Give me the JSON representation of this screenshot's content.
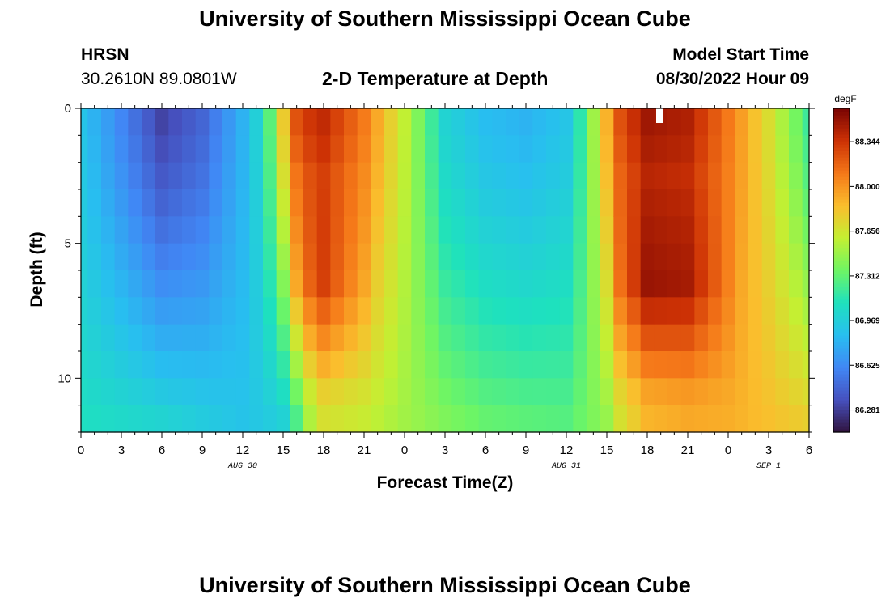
{
  "page": {
    "title_top": "University of Southern Mississippi Ocean Cube",
    "title_bottom": "University of Southern Mississippi Ocean Cube",
    "station_name": "HRSN",
    "station_coords": "30.2610N  89.0801W",
    "plot_title": "2-D Temperature at Depth",
    "model_start_label": "Model Start Time",
    "model_start_value": "08/30/2022 Hour 09"
  },
  "chart_data": {
    "type": "heatmap",
    "title": "2-D Temperature at Depth",
    "xlabel": "Forecast Time(Z)",
    "ylabel": "Depth (ft)",
    "x_range_hours": [
      0,
      54
    ],
    "y_range_ft": [
      0,
      12
    ],
    "x_ticks": [
      {
        "hour": 0,
        "label": "0"
      },
      {
        "hour": 3,
        "label": "3"
      },
      {
        "hour": 6,
        "label": "6"
      },
      {
        "hour": 9,
        "label": "9"
      },
      {
        "hour": 12,
        "label": "12"
      },
      {
        "hour": 15,
        "label": "15"
      },
      {
        "hour": 18,
        "label": "18"
      },
      {
        "hour": 21,
        "label": "21"
      },
      {
        "hour": 24,
        "label": "0"
      },
      {
        "hour": 27,
        "label": "3"
      },
      {
        "hour": 30,
        "label": "6"
      },
      {
        "hour": 33,
        "label": "9"
      },
      {
        "hour": 36,
        "label": "12"
      },
      {
        "hour": 39,
        "label": "15"
      },
      {
        "hour": 42,
        "label": "18"
      },
      {
        "hour": 45,
        "label": "21"
      },
      {
        "hour": 48,
        "label": "0"
      },
      {
        "hour": 51,
        "label": "3"
      },
      {
        "hour": 54,
        "label": "6"
      }
    ],
    "date_labels": [
      {
        "hour": 12,
        "label": "AUG 30"
      },
      {
        "hour": 36,
        "label": "AUG 31"
      },
      {
        "hour": 51,
        "label": "SEP 1"
      }
    ],
    "y_ticks": [
      {
        "depth": 0,
        "label": "0"
      },
      {
        "depth": 5,
        "label": "5"
      },
      {
        "depth": 10,
        "label": "10"
      }
    ],
    "colorbar": {
      "unit": "degF",
      "min": 86.11,
      "max": 88.6,
      "tick_values": [
        86.281,
        86.625,
        86.969,
        87.312,
        87.656,
        88.0,
        88.344
      ],
      "tick_labels": [
        "86.281",
        "86.625",
        "86.969",
        "87.312",
        "87.656",
        "88.000",
        "88.344"
      ]
    },
    "grid": {
      "hours_start": 0,
      "hours_step": 1,
      "hours_count": 55,
      "depth_rows": [
        0.5,
        1.5,
        2.5,
        3.5,
        4.5,
        5.5,
        6.5,
        7.5,
        8.5,
        9.5,
        10.5,
        11.5
      ],
      "surface_keypoints": {
        "hours": [
          0,
          3,
          6,
          9,
          12,
          13,
          14,
          15,
          16,
          17,
          18,
          21,
          24,
          27,
          30,
          33,
          36,
          37,
          38,
          39,
          40,
          42,
          45,
          48,
          51,
          54
        ],
        "temps": [
          86.9,
          86.6,
          86.3,
          86.45,
          86.8,
          86.98,
          87.3,
          87.8,
          88.25,
          88.35,
          88.4,
          88.1,
          87.6,
          87.0,
          86.85,
          86.8,
          86.9,
          87.15,
          87.5,
          87.9,
          88.25,
          88.5,
          88.45,
          88.1,
          87.7,
          87.2
        ]
      },
      "deep_keypoints": {
        "hours": [
          0,
          6,
          12,
          15,
          16,
          17,
          18,
          21,
          24,
          30,
          36,
          39,
          40,
          42,
          45,
          48,
          51,
          54
        ],
        "temps": [
          87.1,
          87.05,
          86.9,
          86.95,
          87.2,
          87.5,
          87.65,
          87.6,
          87.5,
          87.35,
          87.3,
          87.45,
          87.65,
          87.85,
          87.9,
          87.9,
          87.85,
          87.8
        ]
      },
      "warm_layer_extra_max": 0.3,
      "warm_layer_center_ft": 6.5,
      "surface_to_deep_exponent": 1.3
    }
  }
}
